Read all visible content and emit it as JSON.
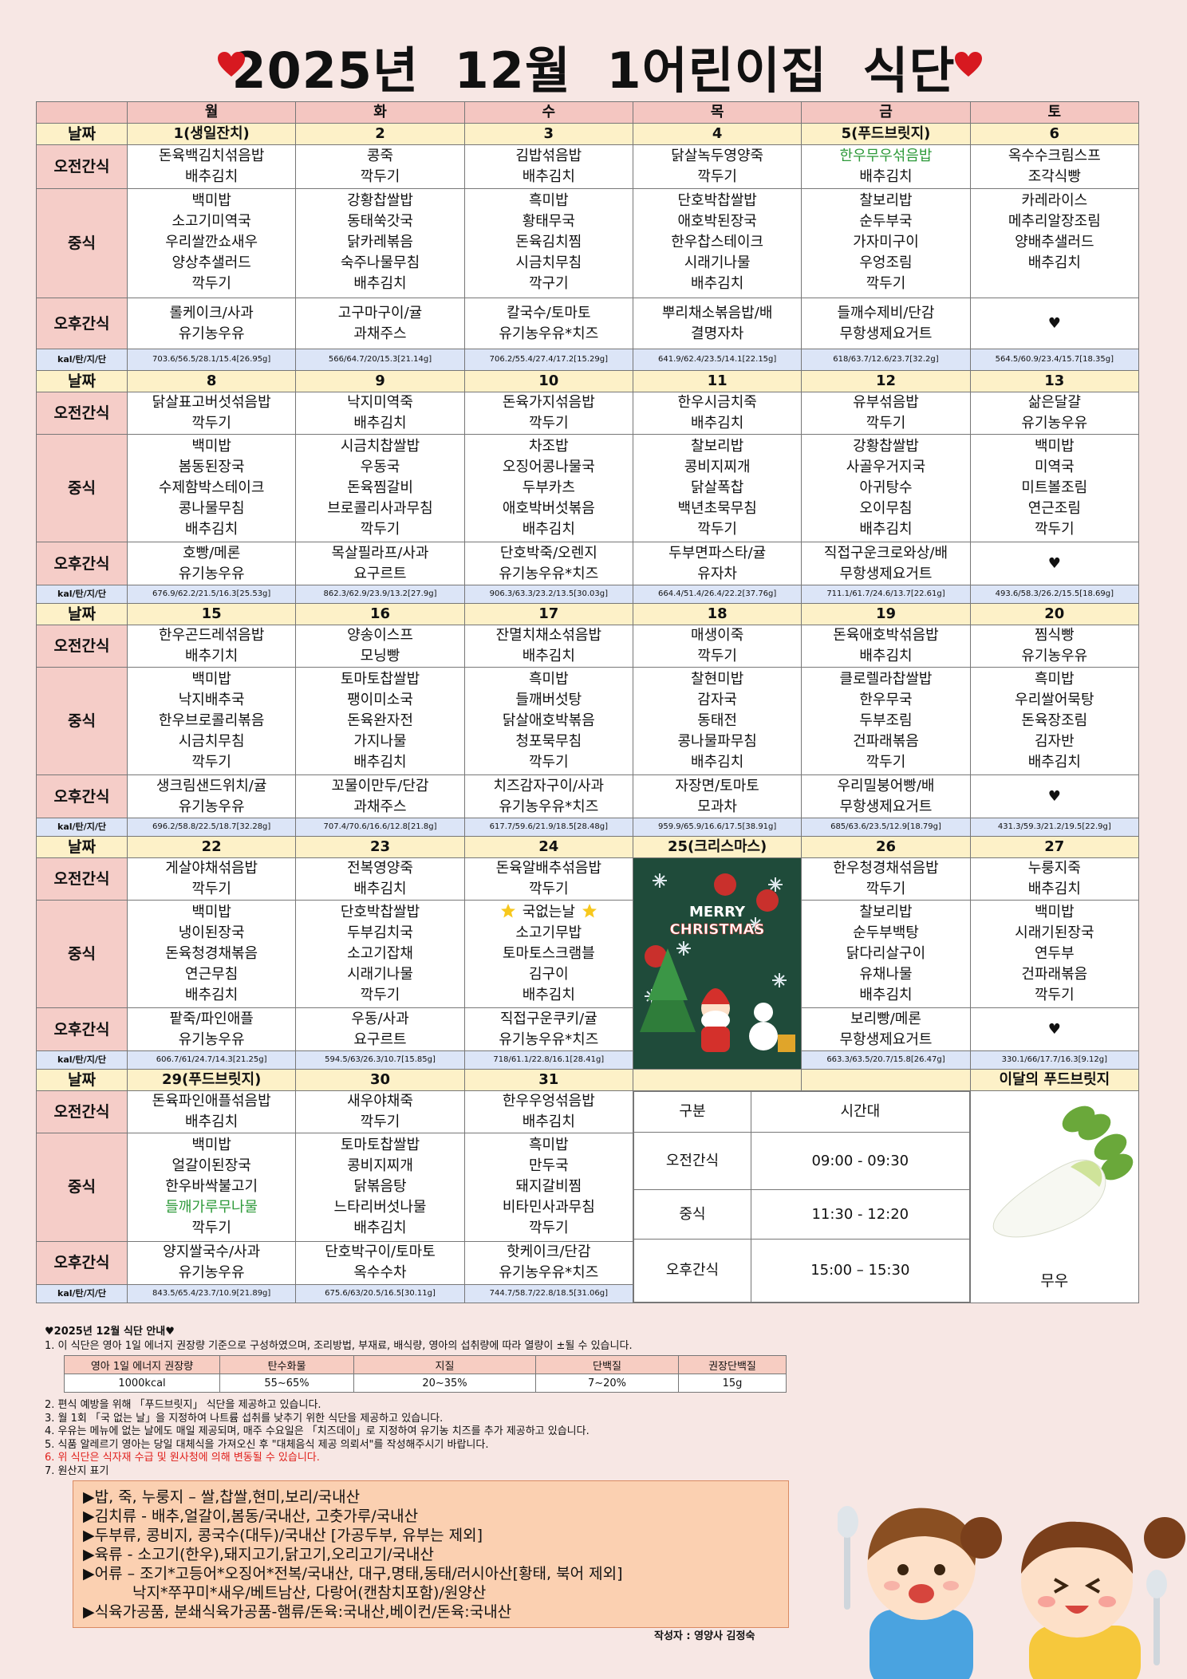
{
  "title": "2025년 12월 1어린이집 식단",
  "days": [
    "월",
    "화",
    "수",
    "목",
    "금",
    "토"
  ],
  "row_labels": [
    "날짜",
    "오전간식",
    "중식",
    "오후간식",
    "kal/탄/지/단"
  ],
  "weeks": [
    {
      "dates": [
        "1(생일잔치)",
        "2",
        "3",
        "4",
        "5(푸드브릿지)",
        "6"
      ],
      "am": [
        [
          "돈육백김치섞음밥",
          "배추김치"
        ],
        [
          "콩죽",
          "깍두기"
        ],
        [
          "김밥섞음밥",
          "배추김치"
        ],
        [
          "닭살녹두영양죽",
          "깍두기"
        ],
        [
          {
            "text": "한우무우섞음밥",
            "color": "#2e9a3a"
          },
          "배추김치"
        ],
        [
          "옥수수크림스프",
          "조각식빵"
        ]
      ],
      "lunch": [
        [
          "백미밥",
          "소고기미역국",
          "우리쌀깐쇼새우",
          "양상추샐러드",
          "깍두기"
        ],
        [
          "강황찹쌀밥",
          "동태쑥갓국",
          "닭카레볶음",
          "숙주나물무침",
          "배추김치"
        ],
        [
          "흑미밥",
          "황태무국",
          "돈육김치찜",
          "시금치무침",
          "깍구기"
        ],
        [
          "단호박찹쌀밥",
          "애호박된장국",
          "한우찹스테이크",
          "시래기나물",
          "배추김치"
        ],
        [
          "찰보리밥",
          "순두부국",
          "가자미구이",
          "우엉조림",
          "깍두기"
        ],
        [
          "카레라이스",
          "메추리알장조림",
          "양배추샐러드",
          "배추김치"
        ]
      ],
      "pm": [
        [
          "롤케이크/사과",
          "유기농우유"
        ],
        [
          "고구마구이/귤",
          "과채주스"
        ],
        [
          "칼국수/토마토",
          "유기농우유*치즈"
        ],
        [
          "뿌리채소볶음밥/배",
          "결명자차"
        ],
        [
          "들깨수제비/단감",
          "무항생제요거트"
        ],
        [
          "♥"
        ]
      ],
      "kcal": [
        "703.6/56.5/28.1/15.4[26.95g]",
        "566/64.7/20/15.3[21.14g]",
        "706.2/55.4/27.4/17.2[15.29g]",
        "641.9/62.4/23.5/14.1[22.15g]",
        "618/63.7/12.6/23.7[32.2g]",
        "564.5/60.9/23.4/15.7[18.35g]"
      ]
    },
    {
      "dates": [
        "8",
        "9",
        "10",
        "11",
        "12",
        "13"
      ],
      "am": [
        [
          "닭살표고버섯섞음밥",
          "깍두기"
        ],
        [
          "낙지미역죽",
          "배추김치"
        ],
        [
          "돈육가지섞음밥",
          "깍두기"
        ],
        [
          "한우시금치죽",
          "배추김치"
        ],
        [
          "유부섞음밥",
          "깍두기"
        ],
        [
          "삶은달걀",
          "유기농우유"
        ]
      ],
      "lunch": [
        [
          "백미밥",
          "봄동된장국",
          "수제함박스테이크",
          "콩나물무침",
          "배추김치"
        ],
        [
          "시금치찹쌀밥",
          "우동국",
          "돈육찜갈비",
          "브로콜리사과무침",
          "깍두기"
        ],
        [
          "차조밥",
          "오징어콩나물국",
          "두부카츠",
          "애호박버섯볶음",
          "배추김치"
        ],
        [
          "찰보리밥",
          "콩비지찌개",
          "닭살폭찹",
          "백년초묵무침",
          "깍두기"
        ],
        [
          "강황찹쌀밥",
          "사골우거지국",
          "아귀탕수",
          "오이무침",
          "배추김치"
        ],
        [
          "백미밥",
          "미역국",
          "미트볼조림",
          "연근조림",
          "깍두기"
        ]
      ],
      "pm": [
        [
          "호빵/메론",
          "유기농우유"
        ],
        [
          "목살필라프/사과",
          "요구르트"
        ],
        [
          "단호박죽/오렌지",
          "유기농우유*치즈"
        ],
        [
          "두부면파스타/귤",
          "유자차"
        ],
        [
          "직접구운크로와상/배",
          "무항생제요거트"
        ],
        [
          "♥"
        ]
      ],
      "kcal": [
        "676.9/62.2/21.5/16.3[25.53g]",
        "862.3/62.9/23.9/13.2[27.9g]",
        "906.3/63.3/23.2/13.5[30.03g]",
        "664.4/51.4/26.4/22.2[37.76g]",
        "711.1/61.7/24.6/13.7[22.61g]",
        "493.6/58.3/26.2/15.5[18.69g]"
      ]
    },
    {
      "dates": [
        "15",
        "16",
        "17",
        "18",
        "19",
        "20"
      ],
      "am": [
        [
          "한우곤드레섞음밥",
          "배추기치"
        ],
        [
          "양송이스프",
          "모닝빵"
        ],
        [
          "잔멸치채소섞음밥",
          "배추김치"
        ],
        [
          "매생이죽",
          "깍두기"
        ],
        [
          "돈육애호박섞음밥",
          "배추김치"
        ],
        [
          "찜식빵",
          "유기농우유"
        ]
      ],
      "lunch": [
        [
          "백미밥",
          "낙지배추국",
          "한우브로콜리볶음",
          "시금치무침",
          "깍두기"
        ],
        [
          "토마토찹쌀밥",
          "팽이미소국",
          "돈육완자전",
          "가지나물",
          "배추김치"
        ],
        [
          "흑미밥",
          "들깨버섯탕",
          "닭살애호박볶음",
          "청포묵무침",
          "깍두기"
        ],
        [
          "찰현미밥",
          "감자국",
          "동태전",
          "콩나물파무침",
          "배추김치"
        ],
        [
          "클로렐라찹쌀밥",
          "한우무국",
          "두부조림",
          "건파래볶음",
          "깍두기"
        ],
        [
          "흑미밥",
          "우리쌀어묵탕",
          "돈육장조림",
          "김자반",
          "배추김치"
        ]
      ],
      "pm": [
        [
          "생크림샌드위치/귤",
          "유기농우유"
        ],
        [
          "꼬물이만두/단감",
          "과채주스"
        ],
        [
          "치즈감자구이/사과",
          "유기농우유*치즈"
        ],
        [
          "자장면/토마토",
          "모과차"
        ],
        [
          "우리밀붕어빵/배",
          "무항생제요거트"
        ],
        [
          "♥"
        ]
      ],
      "kcal": [
        "696.2/58.8/22.5/18.7[32.28g]",
        "707.4/70.6/16.6/12.8[21.8g]",
        "617.7/59.6/21.9/18.5[28.48g]",
        "959.9/65.9/16.6/17.5[38.91g]",
        "685/63.6/23.5/12.9[18.79g]",
        "431.3/59.3/21.2/19.5[22.9g]"
      ]
    },
    {
      "dates": [
        "22",
        "23",
        "24",
        "25(크리스마스)",
        "26",
        "27"
      ],
      "christmas": [
        "MERRY",
        "CHRISTMAS"
      ],
      "am": [
        [
          "게살야채섞음밥",
          "깍두기"
        ],
        [
          "전복영양죽",
          "배추김치"
        ],
        [
          "돈육알배추섞음밥",
          "깍두기"
        ],
        null,
        [
          "한우청경채섞음밥",
          "깍두기"
        ],
        [
          "누룽지죽",
          "배추김치"
        ]
      ],
      "lunch": [
        [
          "백미밥",
          "냉이된장국",
          "돈육청경채볶음",
          "연근무침",
          "배추김치"
        ],
        [
          "단호박찹쌀밥",
          "두부김치국",
          "소고기잡채",
          "시래기나물",
          "깍두기"
        ],
        [
          {
            "text": "국없는날",
            "stars": true
          },
          "소고기무밥",
          "토마토스크램블",
          "김구이",
          "배추김치"
        ],
        null,
        [
          "찰보리밥",
          "순두부백탕",
          "닭다리살구이",
          "유채나물",
          "배추김치"
        ],
        [
          "백미밥",
          "시래기된장국",
          "연두부",
          "건파래볶음",
          "깍두기"
        ]
      ],
      "pm": [
        [
          "팥죽/파인애플",
          "유기농우유"
        ],
        [
          "우동/사과",
          "요구르트"
        ],
        [
          "직접구운쿠키/귤",
          "유기농우유*치즈"
        ],
        null,
        [
          "보리빵/메론",
          "무항생제요거트"
        ],
        [
          "♥"
        ]
      ],
      "kcal": [
        "606.7/61/24.7/14.3[21.25g]",
        "594.5/63/26.3/10.7[15.85g]",
        "718/61.1/22.8/16.1[28.41g]",
        null,
        "663.3/63.5/20.7/15.8[26.47g]",
        "330.1/66/17.7/16.3[9.12g]"
      ]
    },
    {
      "dates": [
        "29(푸드브릿지)",
        "30",
        "31",
        null,
        null,
        "이달의 푸드브릿지"
      ],
      "schedule": {
        "header": [
          "구분",
          "시간대"
        ],
        "rows": [
          [
            "오전간식",
            "09:00  -  09:30"
          ],
          [
            "중식",
            "11:30  -  12:20"
          ],
          [
            "오후간식",
            "15:00  –  15:30"
          ]
        ]
      },
      "food_bridge": "무우",
      "am": [
        [
          "돈육파인애플섞음밥",
          "배추김치"
        ],
        [
          "새우야채죽",
          "깍두기"
        ],
        [
          "한우우엉섞음밥",
          "배추김치"
        ]
      ],
      "lunch": [
        [
          "백미밥",
          "얼갈이된장국",
          "한우바싹불고기",
          {
            "text": "들깨가루무나물",
            "color": "#2e9a3a"
          },
          "깍두기"
        ],
        [
          "토마토찹쌀밥",
          "콩비지찌개",
          "닭볶음탕",
          "느타리버섯나물",
          "배추김치"
        ],
        [
          "흑미밥",
          "만두국",
          "돼지갈비찜",
          "비타민사과무침",
          "깍두기"
        ]
      ],
      "pm": [
        [
          "양지쌀국수/사과",
          "유기농우유"
        ],
        [
          "단호박구이/토마토",
          "옥수수차"
        ],
        [
          "핫케이크/단감",
          "유기농우유*치즈"
        ]
      ],
      "kcal": [
        "843.5/65.4/23.7/10.9[21.89g]",
        "675.6/63/20.5/16.5[30.11g]",
        "744.7/58.7/22.8/18.5[31.06g]"
      ]
    }
  ],
  "notes_title": "♥2025년 12월 식단 안내♥",
  "note1": "1. 이 식단은 영아 1일 에너지 권장량 기준으로 구성하였으며, 조리방법, 부재료, 배식량, 영아의 섭취량에 따라 열량이 ±될 수 있습니다.",
  "energy_table": {
    "header": [
      "영아 1일 에너지 권장량",
      "탄수화물",
      "지질",
      "단백질",
      "권장단백질"
    ],
    "row": [
      "1000kcal",
      "55~65%",
      "20~35%",
      "7~20%",
      "15g"
    ]
  },
  "notes": [
    "2. 편식 예방을 위해 「푸드브릿지」 식단을 제공하고 있습니다.",
    "3. 월 1회 「국 없는 날」을 지정하여 나트륨 섭취를 낮추기 위한 식단을 제공하고 있습니다.",
    "4. 우유는 메뉴에 없는 날에도 매일 제공되며, 매주 수요일은 「치즈데이」로 지정하여 유기농 치즈를 추가 제공하고 있습니다.",
    "5. 식품 알레르기 영아는 당일 대체식을 가져오신 후 \"대체음식 제공 의뢰서\"를 작성해주시기 바랍니다.",
    {
      "text": "6. 위 식단은 식자재 수급 및 원사청에 의해 변동될 수 있습니다.",
      "color": "#e0201c"
    },
    "7. 원산지 표기"
  ],
  "origin": [
    "▶밥, 죽, 누룽지 – 쌀,찹쌀,현미,보리/국내산",
    "▶김치류 - 배추,얼갈이,봄동/국내산, 고춧가루/국내산",
    "▶두부류, 콩비지, 콩국수(대두)/국내산 [가공두부, 유부는 제외]",
    "▶육류 - 소고기(한우),돼지고기,닭고기,오리고기/국내산",
    "▶어류 – 조기*고등어*오징어*전복/국내산, 대구,명태,동태/러시아산[황태, 북어 제외]",
    "낙지*쭈꾸미*새우/베트남산, 다랑어(캔참치포함)/원양산",
    "▶식육가공품, 분쇄식육가공품-햄류/돈육:국내산,베이컨/돈육:국내산"
  ],
  "author": "작성자 : 영양사 김정숙"
}
